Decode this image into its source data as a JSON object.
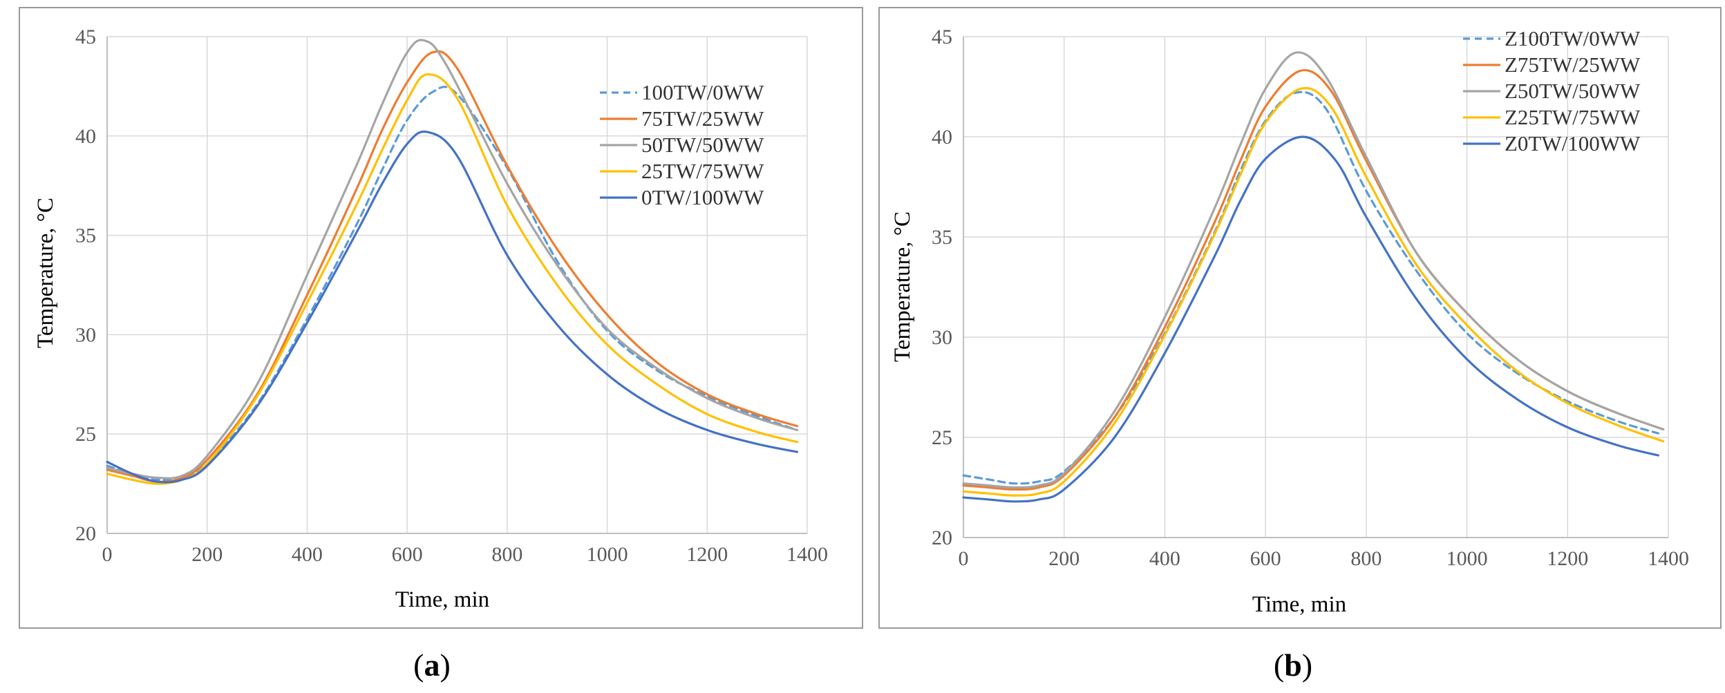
{
  "panels": [
    {
      "caption": {
        "open": "(",
        "letter": "a",
        "close": ")"
      },
      "xlabel": "Time, min",
      "ylabel": "Temperature, °C"
    },
    {
      "caption": {
        "open": "(",
        "letter": "b",
        "close": ")"
      },
      "xlabel": "Time, min",
      "ylabel": "Temperature, °C"
    }
  ],
  "chart_data": [
    {
      "type": "line",
      "title": "",
      "xlabel": "Time, min",
      "ylabel": "Temperature, °C",
      "xlim": [
        0,
        1400
      ],
      "ylim": [
        20,
        45
      ],
      "xticks": [
        0,
        200,
        400,
        600,
        800,
        1000,
        1200,
        1400
      ],
      "yticks": [
        20,
        25,
        30,
        35,
        40,
        45
      ],
      "grid": true,
      "legend_position": "top-right",
      "series": [
        {
          "name": "100TW/0WW",
          "color": "#5B9BD5",
          "dashed": true,
          "x": [
            0,
            50,
            100,
            150,
            200,
            300,
            400,
            500,
            550,
            600,
            650,
            700,
            800,
            900,
            1000,
            1100,
            1200,
            1300,
            1380
          ],
          "y": [
            23.4,
            23.0,
            22.7,
            22.8,
            23.5,
            26.5,
            30.8,
            35.6,
            38.3,
            40.8,
            42.2,
            42.1,
            38.4,
            33.7,
            30.2,
            28.2,
            26.9,
            25.9,
            25.2
          ]
        },
        {
          "name": "75TW/25WW",
          "color": "#ED7D31",
          "dashed": false,
          "x": [
            0,
            50,
            100,
            150,
            200,
            300,
            400,
            500,
            550,
            600,
            650,
            700,
            800,
            900,
            1000,
            1100,
            1200,
            1300,
            1380
          ],
          "y": [
            23.2,
            22.9,
            22.6,
            22.8,
            23.7,
            27.0,
            32.0,
            37.4,
            40.3,
            42.7,
            44.2,
            43.4,
            38.5,
            34.3,
            31.0,
            28.6,
            27.0,
            26.0,
            25.4
          ]
        },
        {
          "name": "50TW/50WW",
          "color": "#A5A5A5",
          "dashed": false,
          "x": [
            0,
            50,
            100,
            150,
            200,
            300,
            400,
            500,
            550,
            600,
            635,
            680,
            800,
            900,
            1000,
            1100,
            1200,
            1300,
            1380
          ],
          "y": [
            23.3,
            23.0,
            22.8,
            22.9,
            23.9,
            27.5,
            33.0,
            38.6,
            41.6,
            44.2,
            44.8,
            43.5,
            37.6,
            33.5,
            30.3,
            28.3,
            26.8,
            25.8,
            25.2
          ]
        },
        {
          "name": "25TW/75WW",
          "color": "#FFC000",
          "dashed": false,
          "x": [
            0,
            50,
            100,
            150,
            200,
            300,
            400,
            500,
            550,
            600,
            640,
            700,
            800,
            900,
            1000,
            1100,
            1200,
            1300,
            1380
          ],
          "y": [
            23.0,
            22.7,
            22.5,
            22.7,
            23.5,
            26.9,
            31.6,
            36.6,
            39.3,
            41.8,
            43.1,
            41.9,
            36.5,
            32.5,
            29.5,
            27.5,
            26.0,
            25.1,
            24.6
          ]
        },
        {
          "name": "0TW/100WW",
          "color": "#4472C4",
          "dashed": false,
          "x": [
            0,
            50,
            100,
            150,
            200,
            300,
            400,
            500,
            550,
            600,
            640,
            700,
            800,
            900,
            1000,
            1100,
            1200,
            1300,
            1380
          ],
          "y": [
            23.6,
            23.0,
            22.6,
            22.7,
            23.4,
            26.4,
            30.6,
            35.2,
            37.6,
            39.6,
            40.2,
            39.0,
            34.0,
            30.5,
            28.0,
            26.3,
            25.2,
            24.5,
            24.1
          ]
        }
      ]
    },
    {
      "type": "line",
      "title": "",
      "xlabel": "Time, min",
      "ylabel": "Temperature, °C",
      "xlim": [
        0,
        1400
      ],
      "ylim": [
        20,
        45
      ],
      "xticks": [
        0,
        200,
        400,
        600,
        800,
        1000,
        1200,
        1400
      ],
      "yticks": [
        20,
        25,
        30,
        35,
        40,
        45
      ],
      "grid": true,
      "legend_position": "top-right",
      "series": [
        {
          "name": "Z100TW/0WW",
          "color": "#5B9BD5",
          "dashed": true,
          "x": [
            0,
            50,
            100,
            150,
            200,
            300,
            400,
            500,
            550,
            600,
            660,
            720,
            800,
            900,
            1000,
            1100,
            1200,
            1300,
            1380
          ],
          "y": [
            23.1,
            22.9,
            22.7,
            22.8,
            23.3,
            26.0,
            30.2,
            35.3,
            38.3,
            40.8,
            42.2,
            41.4,
            37.3,
            33.3,
            30.2,
            28.2,
            26.8,
            25.8,
            25.2
          ]
        },
        {
          "name": "Z75TW/25WW",
          "color": "#ED7D31",
          "dashed": false,
          "x": [
            0,
            50,
            100,
            150,
            200,
            300,
            400,
            500,
            550,
            600,
            670,
            730,
            800,
            900,
            1000,
            1100,
            1200,
            1300,
            1390
          ],
          "y": [
            22.6,
            22.5,
            22.4,
            22.5,
            23.1,
            26.0,
            30.5,
            35.8,
            38.8,
            41.5,
            43.3,
            42.3,
            38.8,
            34.2,
            31.2,
            28.9,
            27.3,
            26.2,
            25.4
          ]
        },
        {
          "name": "Z50TW/50WW",
          "color": "#A5A5A5",
          "dashed": false,
          "x": [
            0,
            50,
            100,
            150,
            200,
            300,
            400,
            500,
            550,
            600,
            660,
            720,
            800,
            900,
            1000,
            1100,
            1200,
            1300,
            1390
          ],
          "y": [
            22.7,
            22.6,
            22.5,
            22.6,
            23.2,
            26.3,
            31.0,
            36.5,
            39.6,
            42.4,
            44.2,
            43.0,
            39.0,
            34.2,
            31.2,
            28.9,
            27.3,
            26.2,
            25.4
          ]
        },
        {
          "name": "Z25TW/75WW",
          "color": "#FFC000",
          "dashed": false,
          "x": [
            0,
            50,
            100,
            150,
            200,
            300,
            400,
            500,
            550,
            600,
            670,
            730,
            800,
            900,
            1000,
            1100,
            1200,
            1300,
            1390
          ],
          "y": [
            22.3,
            22.2,
            22.1,
            22.2,
            22.8,
            25.7,
            30.1,
            35.2,
            38.1,
            40.7,
            42.4,
            41.5,
            38.0,
            33.6,
            30.6,
            28.3,
            26.7,
            25.6,
            24.8
          ]
        },
        {
          "name": "Z0TW/100WW",
          "color": "#4472C4",
          "dashed": false,
          "x": [
            0,
            50,
            100,
            150,
            200,
            300,
            400,
            500,
            550,
            600,
            675,
            740,
            800,
            900,
            1000,
            1100,
            1200,
            1300,
            1380
          ],
          "y": [
            22.0,
            21.9,
            21.8,
            21.9,
            22.4,
            25.0,
            29.2,
            34.1,
            36.8,
            38.9,
            40.0,
            38.8,
            36.0,
            31.9,
            28.9,
            26.9,
            25.5,
            24.6,
            24.1
          ]
        }
      ]
    }
  ]
}
